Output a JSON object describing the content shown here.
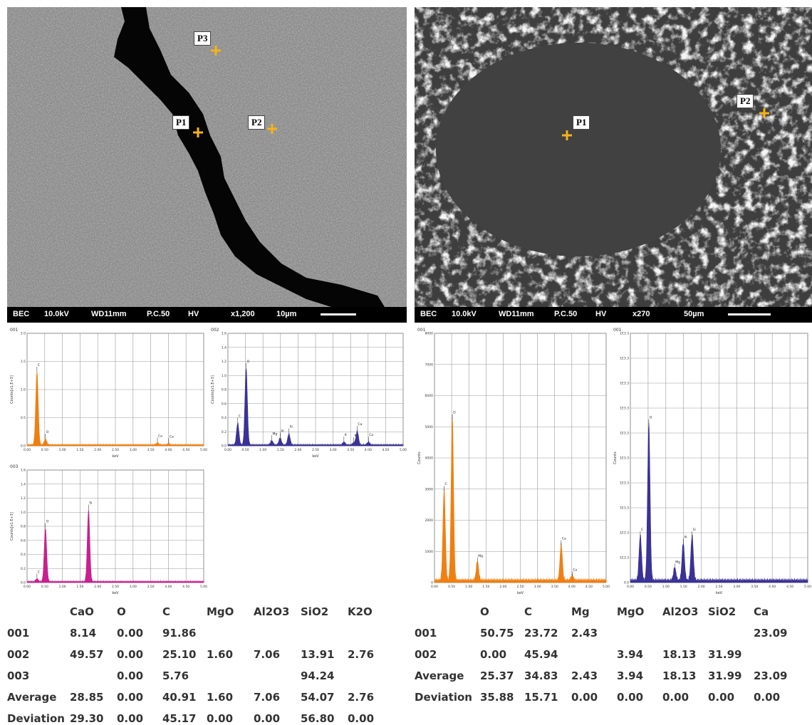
{
  "left_image": {
    "bar": [
      "BEC",
      "10.0kV",
      "WD11mm",
      "P.C.50",
      "HV",
      "x1,200",
      "10µm"
    ],
    "points": [
      "P1",
      "P2",
      "P3"
    ]
  },
  "right_image": {
    "bar": [
      "BEC",
      "10.0kV",
      "WD11mm",
      "P.C.50",
      "HV",
      "x270",
      "50µm"
    ],
    "points": [
      "P1",
      "P2"
    ]
  },
  "marker_color": "#f5b31b",
  "spectra": [
    {
      "id": "001",
      "color": "#f07f12",
      "ylabel": "Counts[x1.E+3]",
      "xlabel": "keV",
      "yticks": [
        "0.0",
        "0.5",
        "1.0",
        "1.5",
        "2.0"
      ],
      "ymax": 2.4,
      "xticks": [
        "0.00",
        "0.50",
        "1.00",
        "1.50",
        "2.00",
        "2.50",
        "3.00",
        "3.50",
        "4.00",
        "4.50",
        "5.00"
      ],
      "xmax": 5,
      "peaks": [
        {
          "x": 0.28,
          "h": 1.55,
          "label": "C"
        },
        {
          "x": 0.52,
          "h": 0.12,
          "label": "O"
        },
        {
          "x": 3.69,
          "h": 0.04,
          "label": "Ca"
        },
        {
          "x": 4.01,
          "h": 0.02,
          "label": "Ca"
        }
      ]
    },
    {
      "id": "002",
      "color": "#3a3296",
      "ylabel": "Counts[x1.E+3]",
      "xlabel": "keV",
      "yticks": [
        "0.0",
        "0.2",
        "0.4",
        "0.6",
        "0.8",
        "1.0",
        "1.2",
        "1.4",
        "1.6"
      ],
      "ymax": 1.65,
      "xticks": [
        "0.00",
        "0.50",
        "1.00",
        "1.50",
        "2.00",
        "2.50",
        "3.00",
        "3.50",
        "4.00",
        "4.50",
        "5.00"
      ],
      "xmax": 5,
      "peaks": [
        {
          "x": 0.28,
          "h": 0.32,
          "label": "C"
        },
        {
          "x": 0.52,
          "h": 1.12,
          "label": "O"
        },
        {
          "x": 1.25,
          "h": 0.06,
          "label": "Mg"
        },
        {
          "x": 1.49,
          "h": 0.1,
          "label": "Al"
        },
        {
          "x": 1.74,
          "h": 0.16,
          "label": "Si"
        },
        {
          "x": 3.31,
          "h": 0.04,
          "label": "K"
        },
        {
          "x": 3.59,
          "h": 0.03,
          "label": "K"
        },
        {
          "x": 3.69,
          "h": 0.2,
          "label": "Ca"
        },
        {
          "x": 4.01,
          "h": 0.04,
          "label": "Ca"
        }
      ]
    },
    {
      "id": "003",
      "color": "#c8208e",
      "ylabel": "Counts[x1.E+3]",
      "xlabel": "keV",
      "yticks": [
        "0.0",
        "0.2",
        "0.4",
        "0.6",
        "0.8",
        "1.0",
        "1.2",
        "1.4",
        "1.6"
      ],
      "ymax": 1.7,
      "xticks": [
        "0.00",
        "0.50",
        "1.00",
        "1.50",
        "2.00",
        "2.50",
        "3.00",
        "3.50",
        "4.00",
        "4.50",
        "5.00"
      ],
      "xmax": 5,
      "peaks": [
        {
          "x": 0.28,
          "h": 0.04,
          "label": "C"
        },
        {
          "x": 0.52,
          "h": 0.8,
          "label": "O"
        },
        {
          "x": 1.74,
          "h": 1.08,
          "label": "Si"
        }
      ]
    },
    {
      "id": "001",
      "color": "#f07f12",
      "ylabel": "Counts",
      "xlabel": "keV",
      "yticks": [
        "0",
        "1000",
        "2000",
        "3000",
        "4000",
        "5000",
        "6000",
        "7000",
        "8000"
      ],
      "ymax": 8000,
      "xticks": [
        "0.00",
        "0.50",
        "1.00",
        "1.50",
        "2.00",
        "2.50",
        "3.00",
        "3.50",
        "4.00",
        "4.50",
        "5.00"
      ],
      "xmax": 5,
      "peaks": [
        {
          "x": 0.28,
          "h": 2900,
          "label": "C"
        },
        {
          "x": 0.52,
          "h": 5200,
          "label": "O"
        },
        {
          "x": 1.25,
          "h": 600,
          "label": "Mg"
        },
        {
          "x": 3.69,
          "h": 1150,
          "label": "Ca"
        },
        {
          "x": 4.01,
          "h": 150,
          "label": "Ca"
        }
      ]
    },
    {
      "id": "001",
      "color": "#3a3296",
      "ylabel": "Counts",
      "xlabel": "keV",
      "yticks": [
        "0.0",
        "1E3.3",
        "1E3.3",
        "1E3.3",
        "1E3.3",
        "1E3.3",
        "1E3.3",
        "1E3.3",
        "1E3.3",
        "1E3.3",
        "1E3.3"
      ],
      "ymax": 10,
      "xticks": [
        "0.00",
        "0.50",
        "1.00",
        "1.50",
        "2.00",
        "2.50",
        "3.00",
        "3.50",
        "4.00",
        "4.50",
        "5.00"
      ],
      "xmax": 5,
      "peaks": [
        {
          "x": 0.28,
          "h": 1.8,
          "label": "C"
        },
        {
          "x": 0.52,
          "h": 6.3,
          "label": "O"
        },
        {
          "x": 1.25,
          "h": 0.5,
          "label": "Mg"
        },
        {
          "x": 1.49,
          "h": 1.5,
          "label": "Al"
        },
        {
          "x": 1.74,
          "h": 1.8,
          "label": "Si"
        }
      ]
    }
  ],
  "table_left": {
    "headers": [
      "CaO",
      "O",
      "C",
      "MgO",
      "Al2O3",
      "SiO2",
      "K2O"
    ],
    "rows": [
      {
        "label": "001",
        "cells": [
          "8.14",
          "0.00",
          "91.86",
          "",
          "",
          "",
          ""
        ]
      },
      {
        "label": "002",
        "cells": [
          "49.57",
          "0.00",
          "25.10",
          "1.60",
          "7.06",
          "13.91",
          "2.76"
        ]
      },
      {
        "label": "003",
        "cells": [
          "",
          "0.00",
          "5.76",
          "",
          "",
          "94.24",
          ""
        ]
      },
      {
        "label": "Average",
        "cells": [
          "28.85",
          "0.00",
          "40.91",
          "1.60",
          "7.06",
          "54.07",
          "2.76"
        ]
      },
      {
        "label": "Deviation",
        "cells": [
          "29.30",
          "0.00",
          "45.17",
          "0.00",
          "0.00",
          "56.80",
          "0.00"
        ]
      }
    ]
  },
  "table_right": {
    "headers": [
      "O",
      "C",
      "Mg",
      "MgO",
      "Al2O3",
      "SiO2",
      "Ca"
    ],
    "rows": [
      {
        "label": "001",
        "cells": [
          "50.75",
          "23.72",
          "2.43",
          "",
          "",
          "",
          "23.09"
        ]
      },
      {
        "label": "002",
        "cells": [
          "0.00",
          "45.94",
          "",
          "3.94",
          "18.13",
          "31.99",
          ""
        ]
      },
      {
        "label": "Average",
        "cells": [
          "25.37",
          "34.83",
          "2.43",
          "3.94",
          "18.13",
          "31.99",
          "23.09"
        ]
      },
      {
        "label": "Deviation",
        "cells": [
          "35.88",
          "15.71",
          "0.00",
          "0.00",
          "0.00",
          "0.00",
          "0.00"
        ]
      }
    ]
  }
}
